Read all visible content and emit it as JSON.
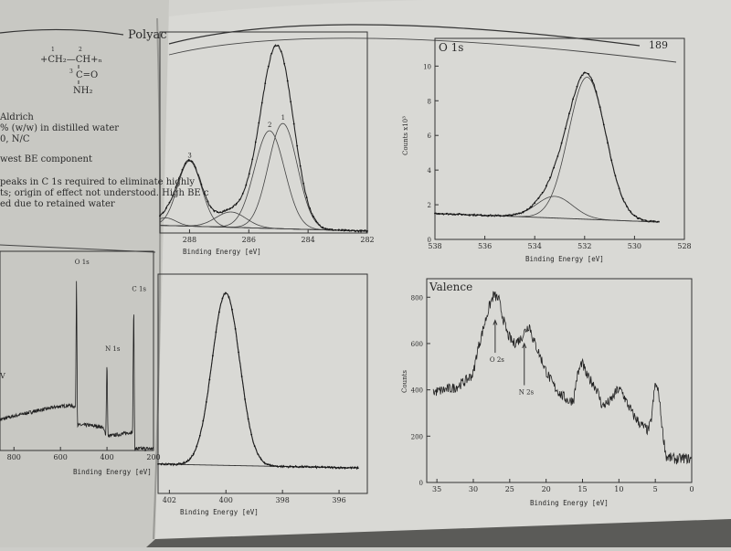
{
  "left_page": {
    "running_head": "Polyac",
    "formula": {
      "chain": "+CH₂—CH+ₙ",
      "carbonyl": "C=O",
      "amine": "NH₂",
      "locants": [
        "1",
        "2",
        "3"
      ]
    },
    "text_lines": [
      "Aldrich",
      "% (w/w) in distilled water",
      "0, N/C",
      "west BE component",
      "peaks in C 1s required to eliminate highly",
      "ts; origin of effect not understood. High BE c",
      "ed due to retained water"
    ],
    "fragment": "V"
  },
  "right_page": {
    "page_number": "189"
  },
  "colors": {
    "ink": "#2a2a2a",
    "left_page": "#c8c8c3",
    "right_page": "#d9d9d5",
    "table_edge": "#5b5b58"
  },
  "chart_data": [
    {
      "id": "survey",
      "type": "line",
      "xlabel": "Binding Energy [eV]",
      "xlim": [
        860,
        200
      ],
      "ylim": [
        0,
        1.1
      ],
      "xticks": [
        800,
        600,
        400,
        200
      ],
      "peak_labels": [
        {
          "text": "O 1s",
          "x": 531,
          "y": 1.0
        },
        {
          "text": "N 1s",
          "x": 400,
          "y": 0.52
        },
        {
          "text": "C 1s",
          "x": 285,
          "y": 0.85
        }
      ],
      "points": [
        [
          860,
          0.17
        ],
        [
          800,
          0.19
        ],
        [
          700,
          0.22
        ],
        [
          620,
          0.24
        ],
        [
          560,
          0.25
        ],
        [
          535,
          0.24
        ],
        [
          531,
          1.0
        ],
        [
          527,
          0.14
        ],
        [
          480,
          0.14
        ],
        [
          420,
          0.13
        ],
        [
          405,
          0.09
        ],
        [
          400,
          0.52
        ],
        [
          396,
          0.08
        ],
        [
          340,
          0.09
        ],
        [
          300,
          0.1
        ],
        [
          290,
          0.1
        ],
        [
          285,
          0.85
        ],
        [
          281,
          0.01
        ],
        [
          200,
          0.01
        ]
      ]
    },
    {
      "id": "c1s",
      "type": "line",
      "xlabel": "Binding Energy [eV]",
      "xlim": [
        289,
        282
      ],
      "ylim": [
        0,
        1.05
      ],
      "xticks": [
        288,
        286,
        284,
        282
      ],
      "background": [
        [
          289,
          0.04
        ],
        [
          282,
          0.01
        ]
      ],
      "components": [
        {
          "label": "1",
          "center": 284.85,
          "height": 0.55,
          "fwhm": 1.15
        },
        {
          "label": "2",
          "center": 285.3,
          "height": 0.51,
          "fwhm": 1.2
        },
        {
          "label": "3",
          "center": 288.0,
          "height": 0.34,
          "fwhm": 0.95
        },
        {
          "label": "",
          "center": 286.6,
          "height": 0.08,
          "fwhm": 1.2
        },
        {
          "label": "",
          "center": 288.8,
          "height": 0.04,
          "fwhm": 0.8
        }
      ]
    },
    {
      "id": "o1s",
      "type": "line",
      "title": "O 1s",
      "xlabel": "Binding Energy [eV]",
      "ylabel": "Counts x10³",
      "xlim": [
        538,
        528
      ],
      "ylim": [
        0,
        11.6
      ],
      "xticks": [
        538,
        536,
        534,
        532,
        530,
        528
      ],
      "yticks": [
        0,
        2,
        4,
        6,
        8,
        10
      ],
      "background": [
        [
          538,
          1.5
        ],
        [
          529,
          1.0
        ]
      ],
      "components": [
        {
          "center": 531.9,
          "height": 8.2,
          "fwhm": 1.75
        },
        {
          "center": 533.2,
          "height": 1.25,
          "fwhm": 1.7
        }
      ]
    },
    {
      "id": "n1s",
      "type": "line",
      "xlabel": "Binding Energy [eV]",
      "xlim": [
        402.4,
        395.0
      ],
      "ylim": [
        0,
        1.12
      ],
      "xticks": [
        402,
        400,
        398,
        396
      ],
      "background": [
        [
          402.4,
          0.15
        ],
        [
          395.3,
          0.13
        ]
      ],
      "components": [
        {
          "center": 400.0,
          "height": 0.88,
          "fwhm": 1.15
        }
      ]
    },
    {
      "id": "valence",
      "type": "line",
      "title": "Valence",
      "xlabel": "Binding Energy [eV]",
      "ylabel": "Counts",
      "xlim": [
        36.4,
        0
      ],
      "ylim": [
        0,
        880
      ],
      "xticks": [
        35,
        30,
        25,
        20,
        15,
        10,
        5,
        0
      ],
      "yticks": [
        0,
        200,
        400,
        600,
        800
      ],
      "annotations": [
        {
          "text": "O 2s",
          "x": 27.0,
          "y": 560,
          "arrow_to": 700
        },
        {
          "text": "N 2s",
          "x": 23.0,
          "y": 420,
          "arrow_to": 600
        }
      ],
      "points": [
        [
          35.5,
          390
        ],
        [
          34,
          400
        ],
        [
          32.5,
          410
        ],
        [
          31,
          440
        ],
        [
          30,
          470
        ],
        [
          29.5,
          560
        ],
        [
          28.5,
          680
        ],
        [
          27.8,
          760
        ],
        [
          27.2,
          810
        ],
        [
          26.5,
          790
        ],
        [
          26,
          720
        ],
        [
          25.3,
          640
        ],
        [
          24.5,
          600
        ],
        [
          23.5,
          620
        ],
        [
          22.8,
          660
        ],
        [
          22.3,
          680
        ],
        [
          21.8,
          620
        ],
        [
          21,
          560
        ],
        [
          20,
          480
        ],
        [
          19,
          420
        ],
        [
          18,
          380
        ],
        [
          16.8,
          350
        ],
        [
          16.2,
          360
        ],
        [
          15.8,
          450
        ],
        [
          15.1,
          520
        ],
        [
          14.4,
          460
        ],
        [
          13.6,
          430
        ],
        [
          13,
          400
        ],
        [
          12.3,
          330
        ],
        [
          11.2,
          350
        ],
        [
          10.2,
          400
        ],
        [
          9.6,
          395
        ],
        [
          9,
          350
        ],
        [
          8,
          290
        ],
        [
          7,
          250
        ],
        [
          6,
          225
        ],
        [
          5.6,
          260
        ],
        [
          5.0,
          430
        ],
        [
          4.5,
          380
        ],
        [
          4.0,
          220
        ],
        [
          3.5,
          110
        ],
        [
          2,
          100
        ],
        [
          1,
          105
        ],
        [
          0,
          100
        ]
      ]
    }
  ]
}
